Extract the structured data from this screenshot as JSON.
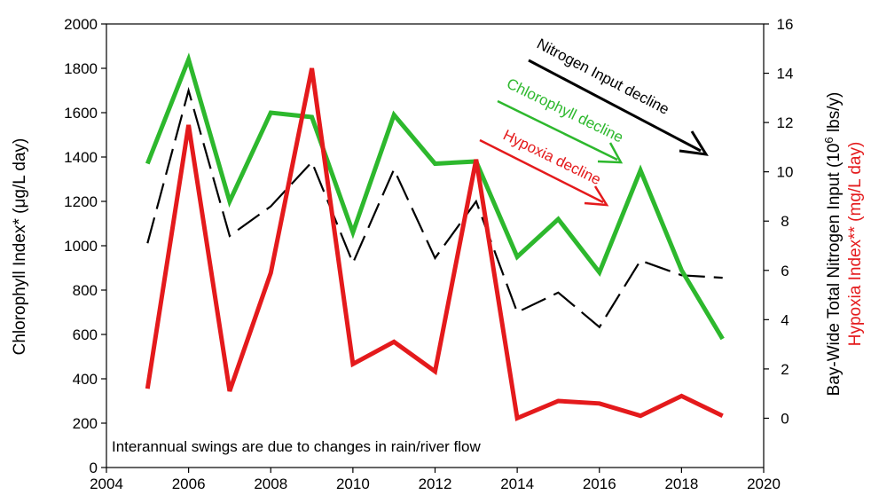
{
  "chart_data": {
    "type": "line",
    "xlim": [
      2004,
      2020
    ],
    "x_ticks": [
      2004,
      2006,
      2008,
      2010,
      2012,
      2014,
      2016,
      2018,
      2020
    ],
    "y_left": {
      "label_main": "Chlorophyll Index* (",
      "label_unit": "μg/L day",
      "label_close": ")",
      "ylim": [
        0,
        2000
      ],
      "ticks": [
        0,
        200,
        400,
        600,
        800,
        1000,
        1200,
        1400,
        1600,
        1800,
        2000
      ],
      "color": "#2db82d"
    },
    "y_right": {
      "outer_label_main": "Bay-Wide Total Nitrogen Input (10",
      "outer_label_sup": "6",
      "outer_label_close": " lbs/y)",
      "inner_label": "Hypoxia Index** (mg/L day)",
      "ylim": [
        -2,
        16
      ],
      "ticks": [
        0,
        2,
        4,
        6,
        8,
        10,
        12,
        14,
        16
      ],
      "inner_color": "#e41a1c"
    },
    "x": [
      2005,
      2006,
      2007,
      2008,
      2009,
      2010,
      2011,
      2012,
      2013,
      2014,
      2015,
      2016,
      2017,
      2018,
      2019
    ],
    "series": [
      {
        "key": "chlorophyll",
        "axis": "left",
        "color": "#2db82d",
        "style": "solid",
        "values": [
          1370,
          1840,
          1200,
          1600,
          1580,
          1060,
          1590,
          1370,
          1380,
          950,
          1120,
          880,
          1340,
          890,
          580
        ]
      },
      {
        "key": "nitrogen",
        "axis": "right",
        "color": "#000000",
        "style": "dashed",
        "values": [
          7.1,
          13.3,
          7.4,
          8.6,
          10.4,
          6.3,
          10.1,
          6.5,
          8.8,
          4.3,
          5.1,
          3.7,
          6.4,
          5.8,
          5.7
        ]
      },
      {
        "key": "hypoxia",
        "axis": "right",
        "color": "#e41a1c",
        "style": "solid",
        "values": [
          1.2,
          11.9,
          1.1,
          5.9,
          14.2,
          2.2,
          3.1,
          1.9,
          10.5,
          0.0,
          0.7,
          0.6,
          0.1,
          0.9,
          0.1
        ]
      }
    ],
    "annotations": [
      {
        "key": "nitrogen",
        "text": "Nitrogen Input decline",
        "color": "#000000"
      },
      {
        "key": "chlorophyll",
        "text": "Chlorophyll decline",
        "color": "#2db82d"
      },
      {
        "key": "hypoxia",
        "text": "Hypoxia decline",
        "color": "#e41a1c"
      }
    ],
    "note": "Interannual swings are due to changes in rain/river flow"
  }
}
